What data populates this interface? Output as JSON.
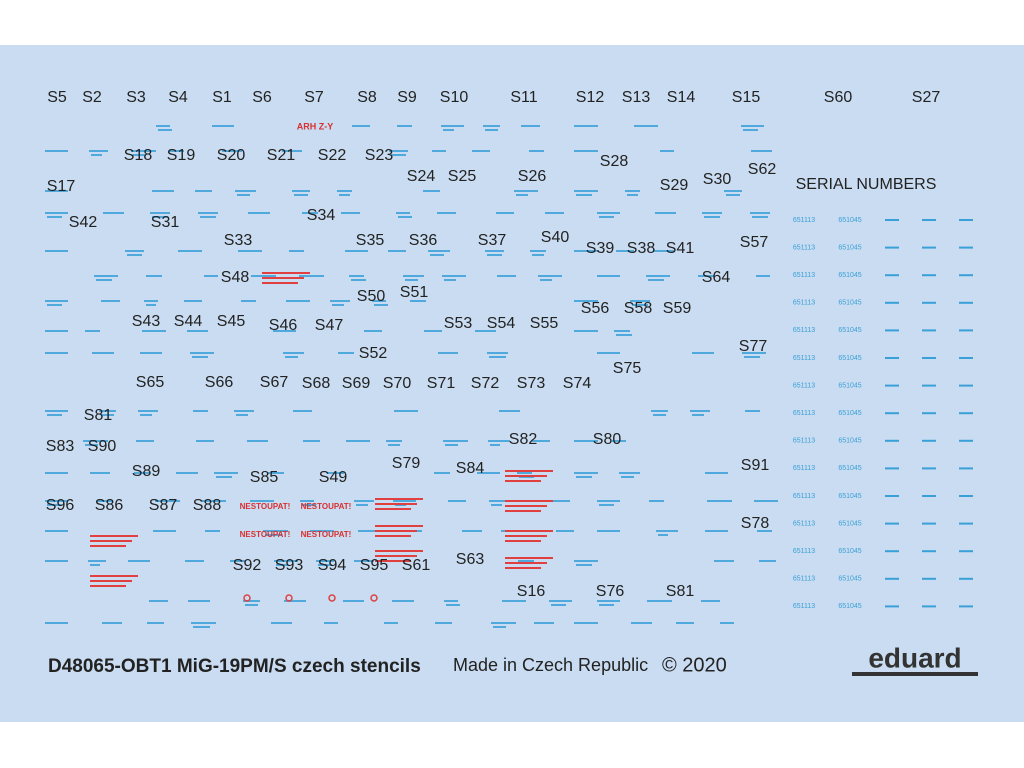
{
  "sheet": {
    "labels": [
      "S5",
      "S2",
      "S3",
      "S4",
      "S1",
      "S6",
      "S7",
      "S8",
      "S9",
      "S10",
      "S11",
      "S12",
      "S13",
      "S14",
      "S15",
      "S60",
      "S27",
      "S18",
      "S19",
      "S20",
      "S21",
      "S22",
      "S23",
      "S28",
      "S62",
      "S24",
      "S25",
      "S26",
      "S17",
      "S29",
      "S30",
      "S34",
      "S42",
      "S31",
      "S33",
      "S35",
      "S36",
      "S37",
      "S40",
      "S57",
      "S39",
      "S38",
      "S41",
      "S48",
      "S64",
      "S50",
      "S51",
      "S56",
      "S58",
      "S59",
      "S43",
      "S44",
      "S45",
      "S46",
      "S47",
      "S53",
      "S54",
      "S55",
      "S77",
      "S52",
      "S75",
      "S65",
      "S66",
      "S67",
      "S68",
      "S69",
      "S70",
      "S71",
      "S72",
      "S73",
      "S74",
      "S81",
      "S82",
      "S80",
      "S83",
      "S90",
      "S79",
      "S84",
      "S89",
      "S91",
      "S85",
      "S49",
      "S96",
      "S86",
      "S87",
      "S88",
      "S78",
      "S63",
      "S92",
      "S93",
      "S94",
      "S95",
      "S61",
      "S16",
      "S76",
      "S81"
    ],
    "serial_title": "SERIAL NUMBERS",
    "serial_numbers": [
      "651113",
      "651045"
    ],
    "red_markings": [
      "ARH Z-Y",
      "NESTOUPAT!"
    ],
    "footer": {
      "product": "D48065-OBT1 MiG-19PM/S czech stencils",
      "origin": "Made in Czech Republic",
      "copyright": "© 2020",
      "brand": "eduard"
    }
  }
}
